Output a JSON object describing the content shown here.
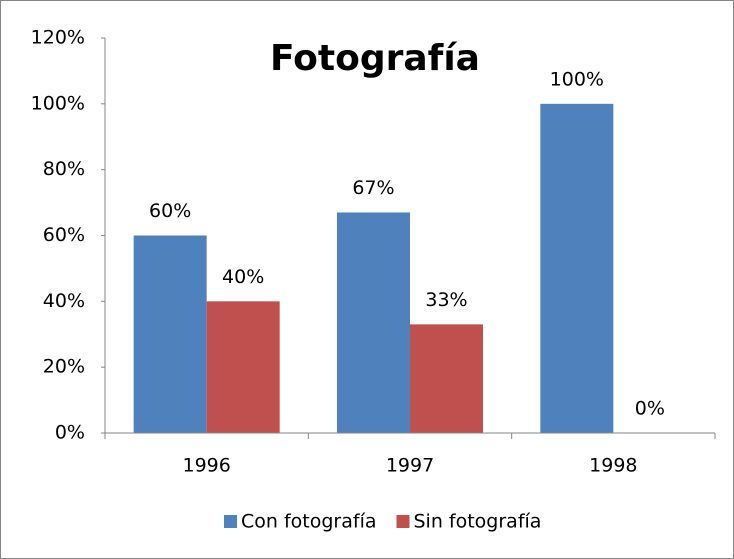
{
  "chart_data": {
    "type": "bar",
    "title": "Fotografía",
    "categories": [
      "1996",
      "1997",
      "1998"
    ],
    "series": [
      {
        "name": "Con fotografía",
        "color": "#4f81bd",
        "values": [
          60,
          67,
          100
        ],
        "value_labels": [
          "60%",
          "67%",
          "100%"
        ]
      },
      {
        "name": "Sin fotografía",
        "color": "#c0504d",
        "values": [
          40,
          33,
          0
        ],
        "value_labels": [
          "40%",
          "33%",
          "0%"
        ]
      }
    ],
    "ylim": [
      0,
      120
    ],
    "yticks": [
      {
        "value": 0,
        "label": "0%"
      },
      {
        "value": 20,
        "label": "20%"
      },
      {
        "value": 40,
        "label": "40%"
      },
      {
        "value": 60,
        "label": "60%"
      },
      {
        "value": 80,
        "label": "80%"
      },
      {
        "value": 100,
        "label": "100%"
      },
      {
        "value": 120,
        "label": "120%"
      }
    ],
    "grid": false,
    "legend": "bottom"
  }
}
